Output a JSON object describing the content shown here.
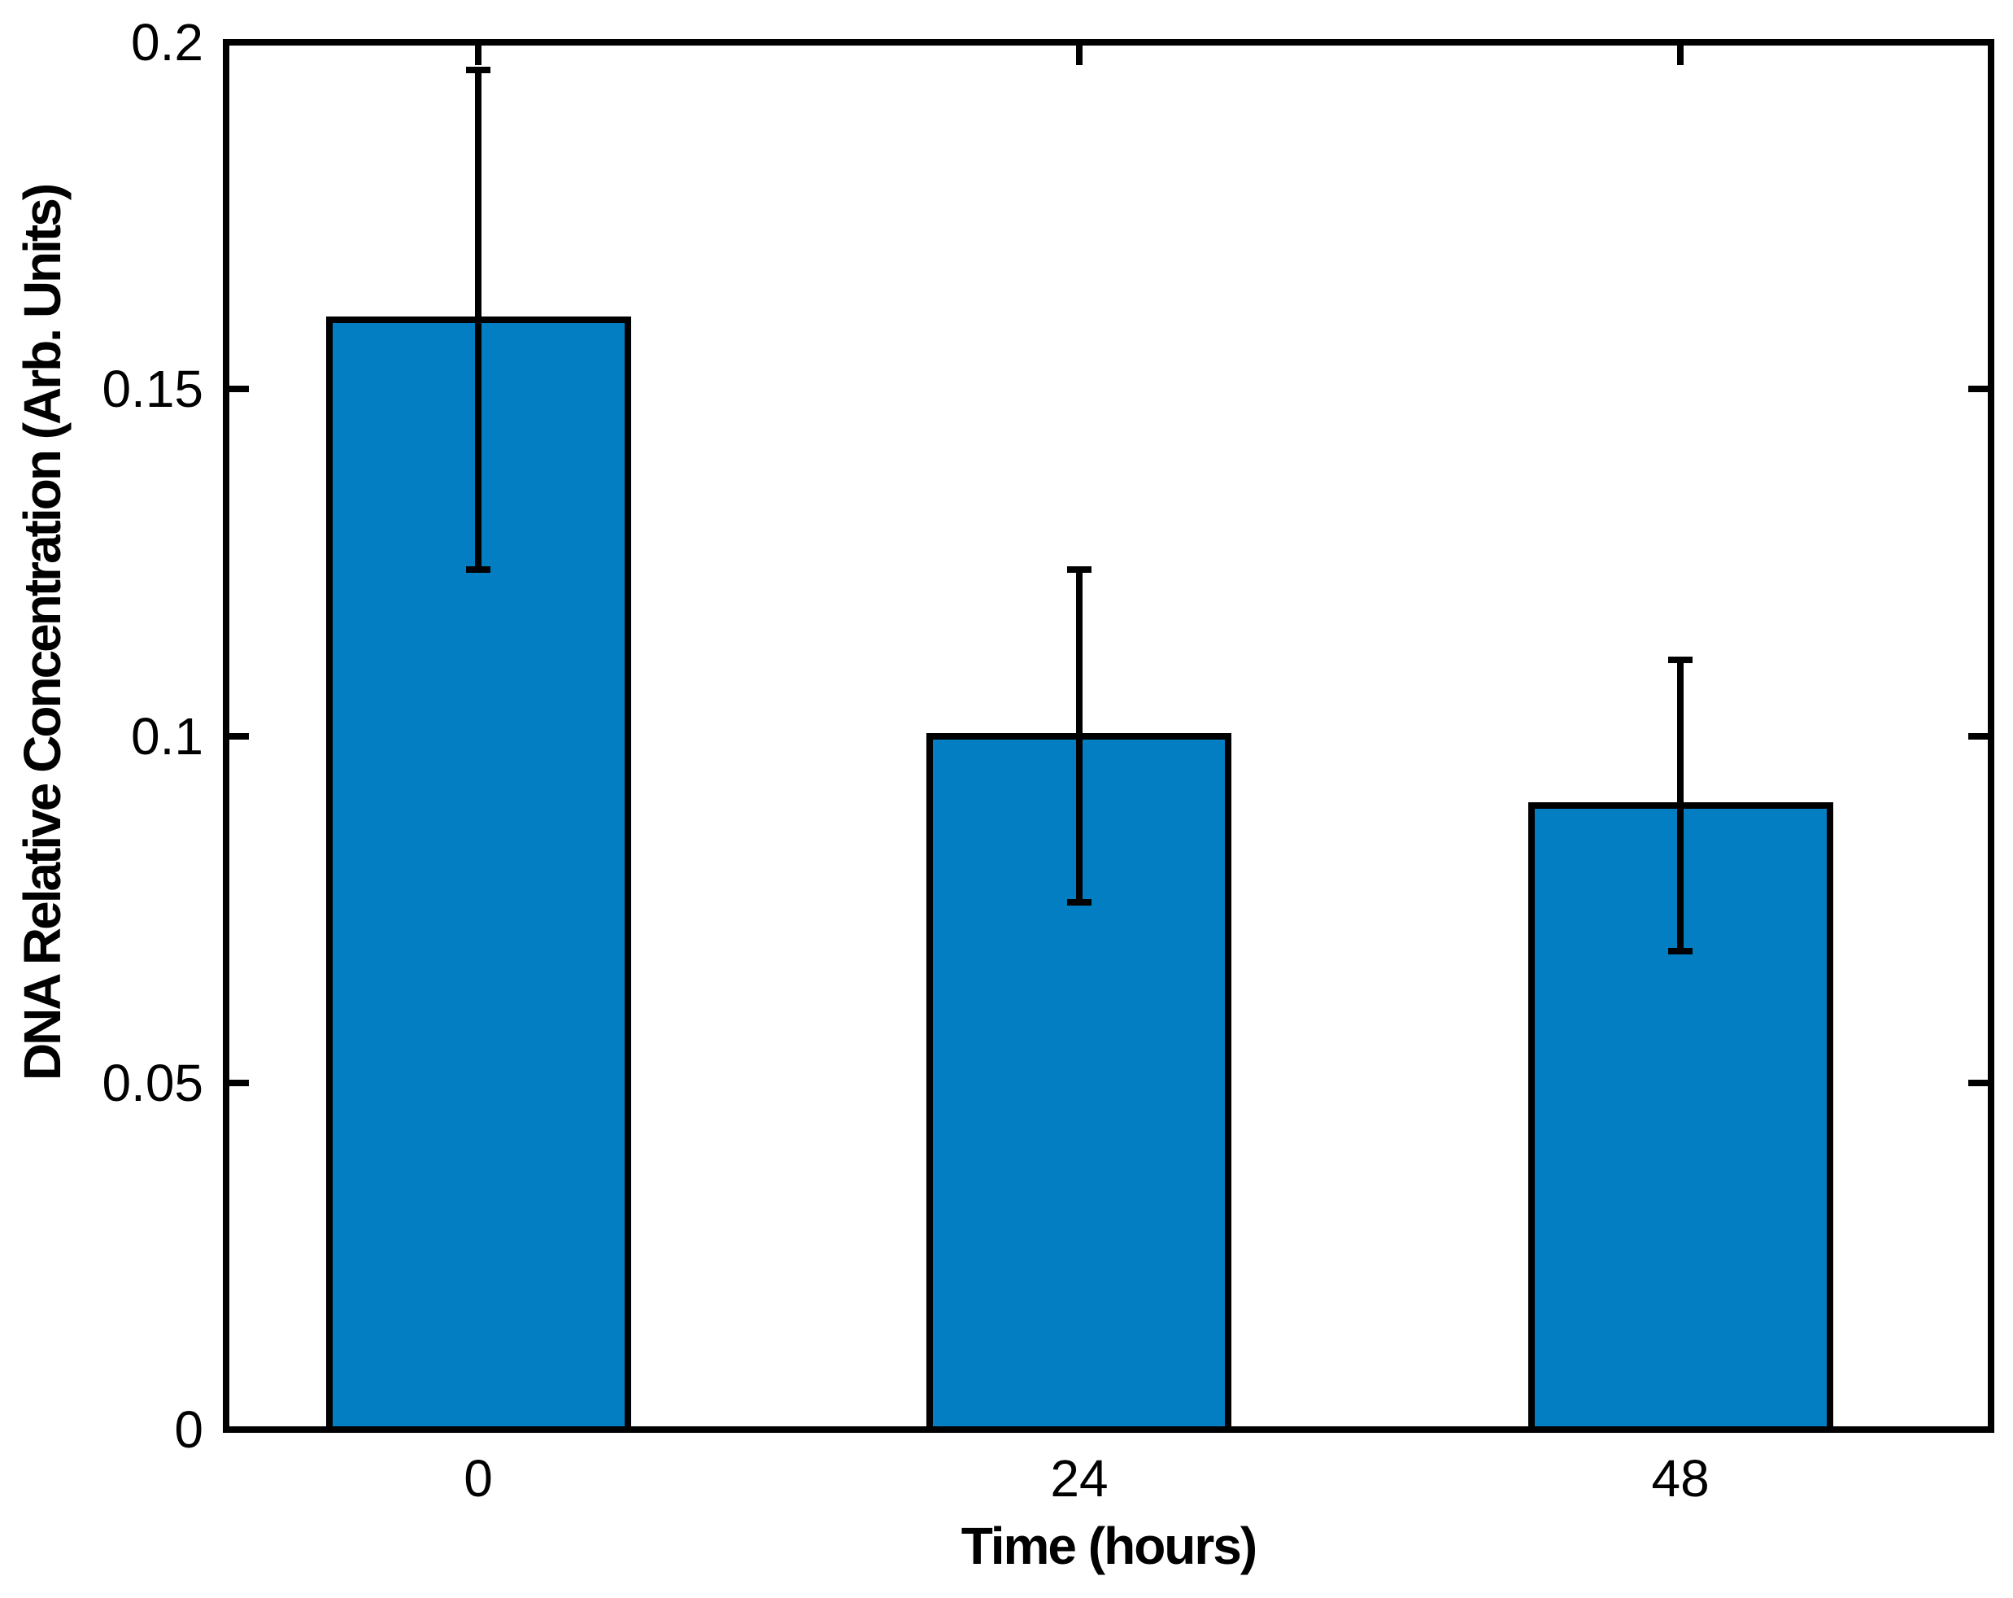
{
  "figure": {
    "background_color": "#ffffff",
    "text_color": "#000000"
  },
  "chart_data": {
    "type": "bar",
    "title": "",
    "xlabel": "Time (hours)",
    "ylabel": "DNA Relative Concentration (Arb. Units)",
    "categories": [
      "0",
      "24",
      "48"
    ],
    "values": [
      0.16,
      0.1,
      0.09
    ],
    "error_bars": [
      0.036,
      0.024,
      0.021
    ],
    "error_upper_limits": [
      0.196,
      0.124,
      0.111
    ],
    "error_lower_limits": [
      0.124,
      0.076,
      0.069
    ],
    "ylim": [
      0,
      0.2
    ],
    "yticks": [
      0,
      0.05,
      0.1,
      0.15,
      0.2
    ],
    "ytick_labels": [
      "0",
      "0.05",
      "0.1",
      "0.15",
      "0.2"
    ],
    "grid": false,
    "legend_position": "none",
    "box": true,
    "tick_direction": "in",
    "bar_color": "#047EC2",
    "bar_edge_color": "#000000",
    "errorbar_color": "#000000",
    "axis_color": "#000000"
  }
}
